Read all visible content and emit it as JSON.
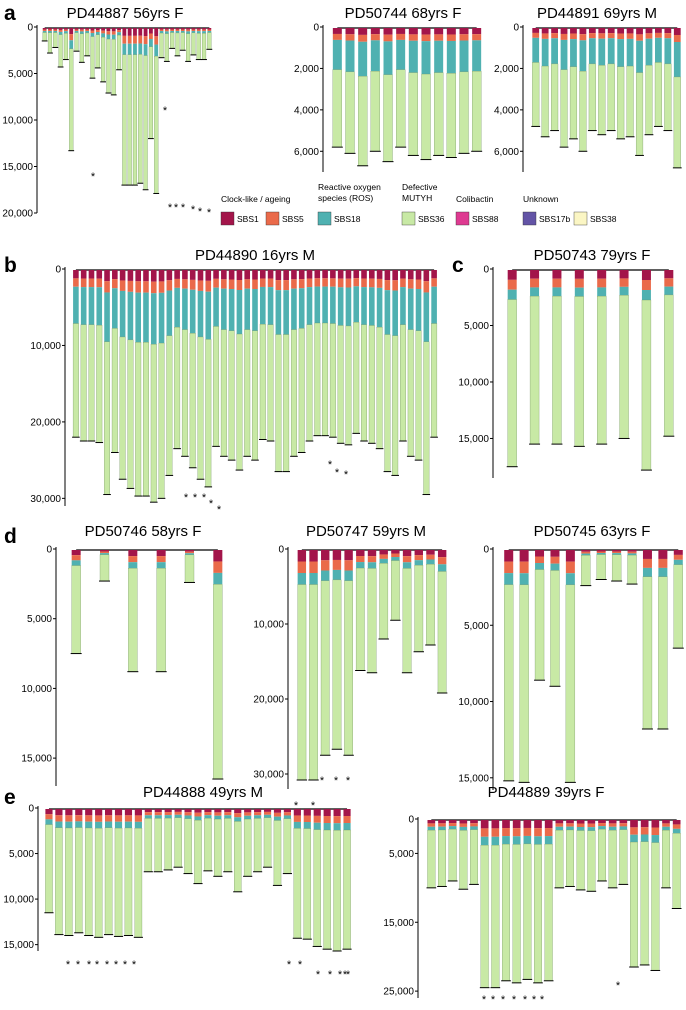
{
  "colors": {
    "SBS1": "#a3154a",
    "SBS5": "#ea6a4a",
    "SBS18": "#4fb1b1",
    "SBS36": "#c8e9a5",
    "SBS88": "#de3a91",
    "SBS17b": "#6354a6",
    "SBS38": "#fbf6c4",
    "tree": "#000000"
  },
  "legend": {
    "groups": [
      "Clock-like / ageing",
      "Reactive oxygen species (ROS)",
      "Defective MUTYH",
      "Colibactin",
      "Unknown"
    ],
    "items": [
      "SBS1",
      "SBS5",
      "SBS18",
      "SBS36",
      "SBS88",
      "SBS17b",
      "SBS38"
    ]
  },
  "chart_data": [
    {
      "panel_label": "a",
      "type": "bar",
      "title": "PD44887 56yrs F",
      "ylim": [
        0,
        20000
      ],
      "yticks": [
        0,
        5000,
        10000,
        15000,
        20000
      ],
      "tick_labels": [
        "0",
        "5,000",
        "10,000",
        "15,000",
        "20,000"
      ],
      "leaf_depths": [
        1500,
        2800,
        2200,
        4300,
        3500,
        13300,
        2600,
        3800,
        3100,
        5500,
        4400,
        5900,
        7100,
        7300,
        4600,
        17000,
        17000,
        17000,
        16800,
        17500,
        12000,
        17900,
        3300,
        3700,
        2300,
        3100,
        2500,
        3700,
        3000,
        3500,
        3500,
        2400
      ],
      "stars": 8
    },
    {
      "panel_label": "",
      "type": "bar",
      "title": "PD50744 68yrs F",
      "ylim": [
        0,
        7000
      ],
      "yticks": [
        0,
        2000,
        4000,
        6000
      ],
      "tick_labels": [
        "0",
        "2,000",
        "4,000",
        "6,000"
      ],
      "leaf_depths": [
        5800,
        6100,
        6700,
        6000,
        6500,
        5800,
        6200,
        6400,
        6200,
        6300,
        6100,
        6000
      ],
      "stars": 0
    },
    {
      "panel_label": "",
      "type": "bar",
      "title": "PD44891 69yrs M",
      "ylim": [
        0,
        7000
      ],
      "yticks": [
        0,
        2000,
        4000,
        6000
      ],
      "tick_labels": [
        "0",
        "2,000",
        "4,000",
        "6,000"
      ],
      "leaf_depths": [
        4800,
        5300,
        5000,
        5800,
        5400,
        6000,
        5000,
        5200,
        5000,
        5400,
        5300,
        6200,
        5200,
        4800,
        5000,
        6800
      ],
      "stars": 0
    },
    {
      "panel_label": "b",
      "type": "bar",
      "title": "PD44890 16yrs M",
      "ylim": [
        0,
        31000
      ],
      "yticks": [
        0,
        10000,
        20000,
        30000
      ],
      "tick_labels": [
        "0",
        "10,000",
        "20,000",
        "30,000"
      ],
      "leaf_depths": [
        22000,
        22500,
        22500,
        22700,
        29500,
        24000,
        27500,
        28700,
        29700,
        29700,
        30500,
        30000,
        27000,
        23500,
        24500,
        26000,
        27500,
        28500,
        23200,
        24500,
        25000,
        26300,
        24500,
        25000,
        22300,
        22500,
        26500,
        26500,
        24500,
        24000,
        22500,
        21800,
        21800,
        22000,
        22800,
        23000,
        21500,
        22500,
        22800,
        23500,
        26500,
        27000,
        22500,
        24500,
        25000,
        29500,
        22000
      ],
      "stars": 8
    },
    {
      "panel_label": "c",
      "type": "bar",
      "title": "PD50743 79yrs F",
      "ylim": [
        0,
        18500
      ],
      "yticks": [
        0,
        5000,
        10000,
        15000
      ],
      "tick_labels": [
        "0",
        "5,000",
        "10,000",
        "15,000"
      ],
      "leaf_depths": [
        17500,
        15500,
        15500,
        15700,
        15500,
        15000,
        17800,
        14800
      ],
      "stars": 0
    },
    {
      "panel_label": "d",
      "type": "bar",
      "title": "PD50746 58yrs F",
      "ylim": [
        0,
        17000
      ],
      "yticks": [
        0,
        5000,
        10000,
        15000
      ],
      "tick_labels": [
        "0",
        "5,000",
        "10,000",
        "15,000"
      ],
      "leaf_depths": [
        7500,
        2300,
        8800,
        8800,
        2400,
        16500
      ],
      "stars": 0
    },
    {
      "panel_label": "",
      "type": "bar",
      "title": "PD50747 59yrs M",
      "ylim": [
        0,
        32000
      ],
      "yticks": [
        0,
        10000,
        20000,
        30000
      ],
      "tick_labels": [
        "0",
        "10,000",
        "20,000",
        "30,000"
      ],
      "leaf_depths": [
        30800,
        30800,
        27500,
        26700,
        27500,
        16200,
        16500,
        12000,
        9500,
        16500,
        13700,
        12800,
        19200
      ],
      "stars": 5
    },
    {
      "panel_label": "",
      "type": "bar",
      "title": "PD50745 63yrs F",
      "ylim": [
        0,
        15800
      ],
      "yticks": [
        0,
        5000,
        10000,
        15000
      ],
      "tick_labels": [
        "0",
        "5,000",
        "10,000",
        "15,000"
      ],
      "leaf_depths": [
        15200,
        15300,
        8600,
        9000,
        15300,
        2400,
        2000,
        2100,
        2300,
        11800,
        11800,
        6500
      ],
      "stars": 0
    },
    {
      "panel_label": "e",
      "type": "bar",
      "title": "PD44888 49yrs M",
      "ylim": [
        0,
        15700
      ],
      "yticks": [
        0,
        5000,
        10000,
        15000
      ],
      "tick_labels": [
        "0",
        "5,000",
        "10,000",
        "15,000"
      ],
      "leaf_depths": [
        11500,
        13900,
        14000,
        13700,
        14000,
        14200,
        13900,
        14100,
        14000,
        14200,
        7000,
        7000,
        6800,
        6500,
        7200,
        8300,
        6900,
        7500,
        7000,
        9200,
        7500,
        7000,
        6500,
        8500,
        7200,
        14300,
        14400,
        15200,
        15500,
        15700,
        15500
      ],
      "stars": 15
    },
    {
      "panel_label": "",
      "type": "bar",
      "title": "PD44889 39yrs F",
      "ylim": [
        0,
        26000
      ],
      "yticks": [
        0,
        5000,
        15000,
        25000
      ],
      "tick_labels": [
        "0",
        "5,000",
        "15,000",
        "25,000"
      ],
      "leaf_depths": [
        10000,
        9800,
        9000,
        10200,
        9500,
        24500,
        24500,
        23500,
        23800,
        23300,
        23800,
        23500,
        10000,
        9800,
        10300,
        10500,
        9000,
        10000,
        9500,
        21500,
        21200,
        22000,
        10000,
        13000
      ],
      "stars": 8
    }
  ]
}
